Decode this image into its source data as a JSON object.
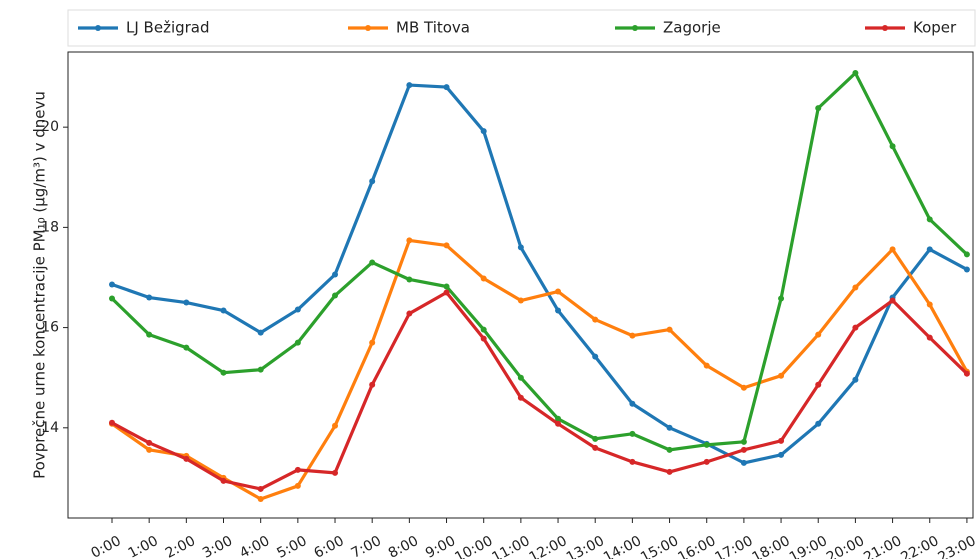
{
  "chart_data": {
    "type": "line",
    "y_label": "Povprečne urne koncentracije PM₁₀ (µg/m³) v dnevu",
    "categories": [
      "0:00",
      "1:00",
      "2:00",
      "3:00",
      "4:00",
      "5:00",
      "6:00",
      "7:00",
      "8:00",
      "9:00",
      "10:00",
      "11:00",
      "12:00",
      "13:00",
      "14:00",
      "15:00",
      "16:00",
      "17:00",
      "18:00",
      "19:00",
      "20:00",
      "21:00",
      "22:00",
      "23:00"
    ],
    "series": [
      {
        "name": "LJ Bežigrad",
        "color": "#1f77b4",
        "values": [
          16.86,
          16.6,
          16.5,
          16.34,
          15.9,
          16.36,
          17.06,
          18.92,
          20.84,
          20.8,
          19.92,
          17.6,
          16.34,
          15.42,
          14.48,
          14.0,
          13.68,
          13.3,
          13.46,
          14.08,
          14.96,
          16.6,
          17.56,
          17.16
        ]
      },
      {
        "name": "MB Titova",
        "color": "#ff7f0e",
        "values": [
          14.08,
          13.56,
          13.44,
          13.0,
          12.58,
          12.84,
          14.04,
          15.7,
          17.74,
          17.64,
          16.98,
          16.54,
          16.72,
          16.16,
          15.84,
          15.96,
          15.24,
          14.8,
          15.04,
          15.86,
          16.8,
          17.56,
          16.46,
          15.12
        ]
      },
      {
        "name": "Zagorje",
        "color": "#2ca02c",
        "values": [
          16.58,
          15.86,
          15.6,
          15.1,
          15.16,
          15.7,
          16.64,
          17.3,
          16.96,
          16.82,
          15.96,
          15.0,
          14.18,
          13.78,
          13.88,
          13.56,
          13.66,
          13.72,
          16.58,
          20.38,
          21.08,
          19.62,
          18.16,
          17.46
        ]
      },
      {
        "name": "Koper",
        "color": "#d62728",
        "values": [
          14.1,
          13.7,
          13.38,
          12.94,
          12.78,
          13.16,
          13.1,
          14.86,
          16.28,
          16.7,
          15.78,
          14.6,
          14.08,
          13.6,
          13.32,
          13.12,
          13.32,
          13.56,
          13.74,
          14.86,
          16.0,
          16.54,
          15.8,
          15.08
        ]
      }
    ],
    "ylim": [
      12.2,
      21.5
    ],
    "yticks": [
      14,
      16,
      18,
      20
    ],
    "grid": false
  }
}
